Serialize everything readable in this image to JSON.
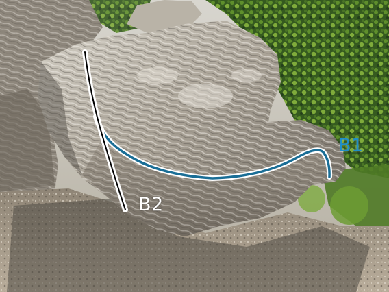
{
  "routes": [
    {
      "id": "B1",
      "label": "B1",
      "line_color": "#ffffff",
      "line_inner_color": "#1a6e96",
      "label_color": "#1f8fc8"
    },
    {
      "id": "B2",
      "label": "B2",
      "line_color": "#ffffff",
      "line_inner_color": "#000000",
      "label_color": "#ffffff"
    }
  ],
  "colors": {
    "rock_light": "#c9c4ba",
    "rock_mid": "#9f988c",
    "rock_dark": "#5b564f",
    "foliage_dark": "#2f4d1d",
    "foliage_light": "#7fa63c",
    "ground": "#a79b8b",
    "shadow": "#4f4a43"
  }
}
